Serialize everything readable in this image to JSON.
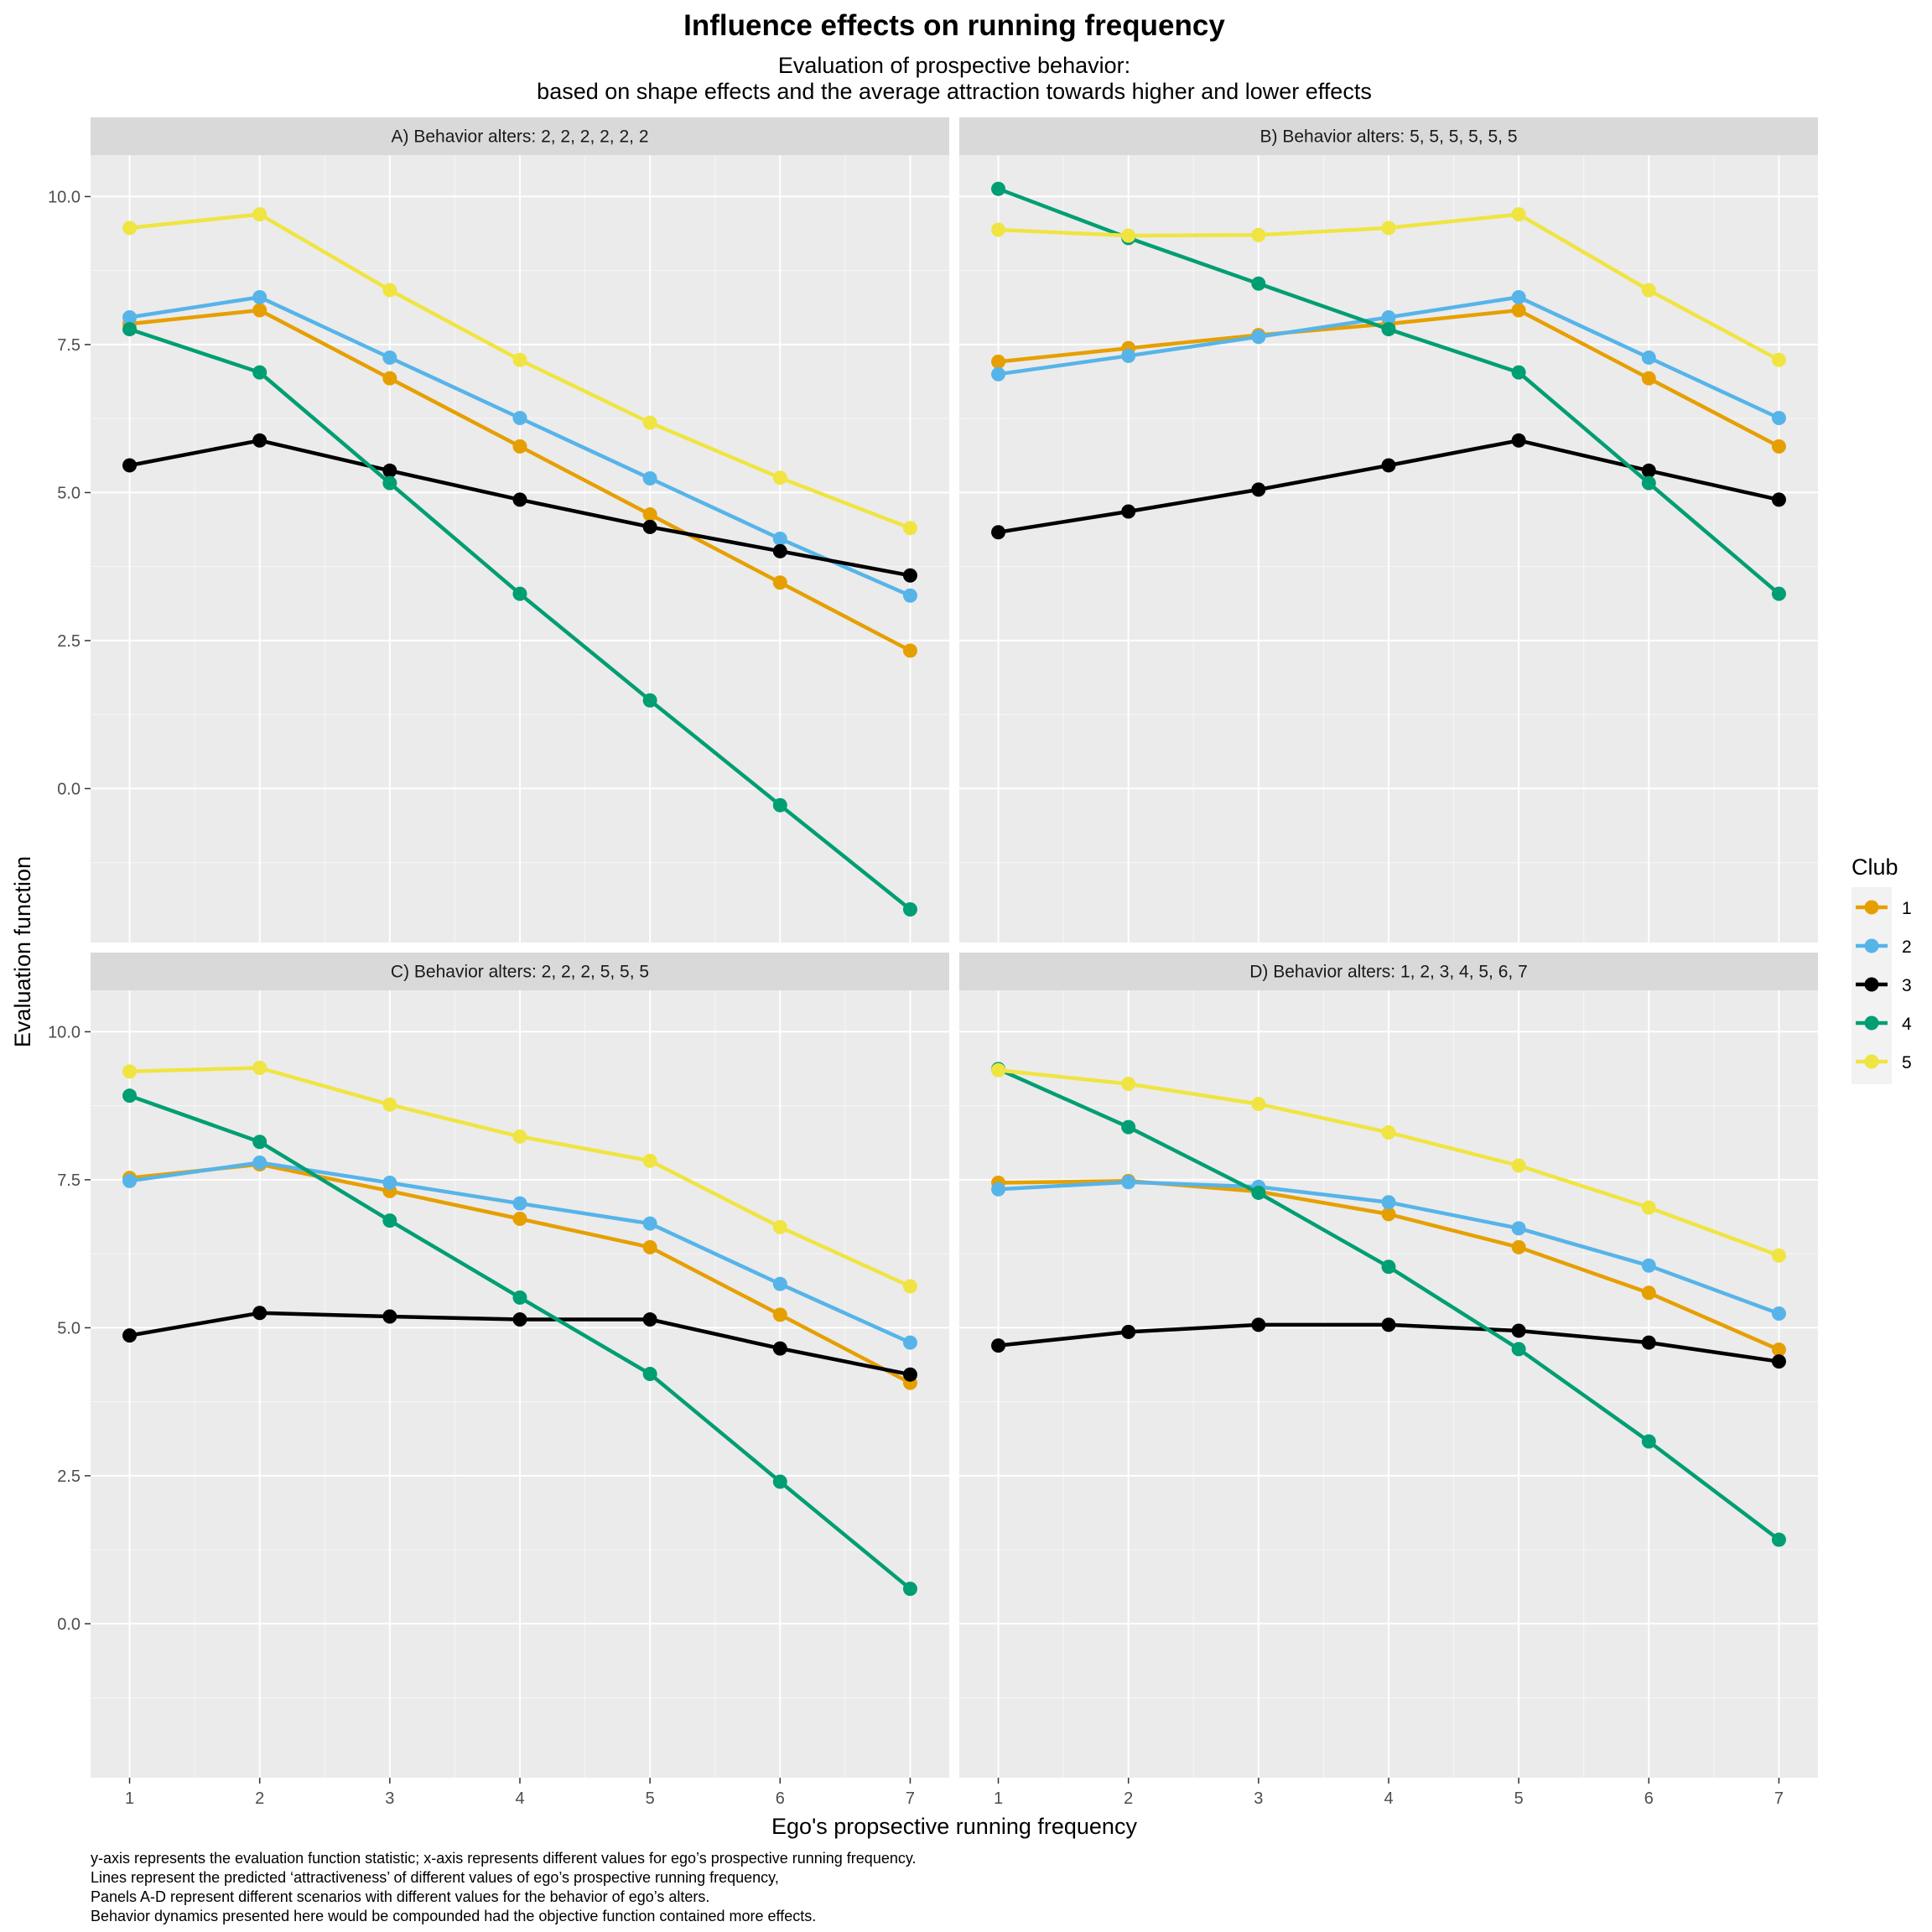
{
  "title": "Influence effects on running frequency",
  "subtitle_lines": [
    "Evaluation of prospective behavior:",
    "based on shape effects and the average attraction towards higher and lower effects"
  ],
  "xlabel": "Ego's propsective running frequency",
  "ylabel": "Evaluation function",
  "legend": {
    "title": "Club",
    "items": [
      {
        "label": "1",
        "color": "#E69F00"
      },
      {
        "label": "2",
        "color": "#56B4E9"
      },
      {
        "label": "3",
        "color": "#000000"
      },
      {
        "label": "4",
        "color": "#009E73"
      },
      {
        "label": "5",
        "color": "#F0E442"
      }
    ]
  },
  "caption_lines": [
    "y-axis represents the evaluation function statistic; x-axis represents different values for ego’s prospective running frequency.",
    "Lines represent the predicted ‘attractiveness’ of different values of ego’s prospective running frequency,",
    "Panels A-D represent different scenarios with different values for the behavior of ego’s alters.",
    " Behavior dynamics presented here would be compounded had the objective function contained more effects."
  ],
  "chart_data": {
    "type": "line",
    "x": [
      1,
      2,
      3,
      4,
      5,
      6,
      7
    ],
    "x_ticks": [
      "1",
      "2",
      "3",
      "4",
      "5",
      "6",
      "7"
    ],
    "y_ticks": [
      "0.0",
      "2.5",
      "5.0",
      "7.5",
      "10.0"
    ],
    "xlim": [
      0.7,
      7.3
    ],
    "ylim": [
      -2.6,
      10.7
    ],
    "grid": true,
    "legend_position": "right",
    "panels": [
      {
        "strip": "A) Behavior alters: 2, 2, 2, 2, 2, 2",
        "series": [
          {
            "name": "1",
            "values": [
              7.85,
              8.08,
              6.93,
              5.78,
              4.63,
              3.48,
              2.33
            ]
          },
          {
            "name": "2",
            "values": [
              7.96,
              8.3,
              7.28,
              6.26,
              5.24,
              4.22,
              3.26
            ]
          },
          {
            "name": "3",
            "values": [
              5.46,
              5.88,
              5.37,
              4.88,
              4.42,
              4.01,
              3.6
            ]
          },
          {
            "name": "4",
            "values": [
              7.76,
              7.03,
              5.16,
              3.29,
              1.49,
              -0.28,
              -2.04
            ]
          },
          {
            "name": "5",
            "values": [
              9.47,
              9.7,
              8.42,
              7.24,
              6.18,
              5.25,
              4.4
            ]
          }
        ]
      },
      {
        "strip": "B) Behavior alters: 5, 5, 5, 5, 5, 5",
        "series": [
          {
            "name": "1",
            "values": [
              7.21,
              7.44,
              7.66,
              7.85,
              8.08,
              6.93,
              5.78
            ]
          },
          {
            "name": "2",
            "values": [
              7.0,
              7.31,
              7.63,
              7.96,
              8.3,
              7.28,
              6.26
            ]
          },
          {
            "name": "3",
            "values": [
              4.33,
              4.68,
              5.05,
              5.46,
              5.88,
              5.37,
              4.88
            ]
          },
          {
            "name": "4",
            "values": [
              10.13,
              9.3,
              8.53,
              7.76,
              7.03,
              5.16,
              3.29
            ]
          },
          {
            "name": "5",
            "values": [
              9.44,
              9.34,
              9.35,
              9.47,
              9.7,
              8.42,
              7.24
            ]
          }
        ]
      },
      {
        "strip": "C) Behavior alters: 2, 2, 2, 5, 5, 5",
        "series": [
          {
            "name": "1",
            "values": [
              7.53,
              7.76,
              7.31,
              6.84,
              6.36,
              5.22,
              4.07
            ]
          },
          {
            "name": "2",
            "values": [
              7.48,
              7.79,
              7.45,
              7.1,
              6.76,
              5.74,
              4.75
            ]
          },
          {
            "name": "3",
            "values": [
              4.87,
              5.25,
              5.19,
              5.14,
              5.14,
              4.65,
              4.21
            ]
          },
          {
            "name": "4",
            "values": [
              8.92,
              8.14,
              6.81,
              5.51,
              4.22,
              2.4,
              0.59
            ]
          },
          {
            "name": "5",
            "values": [
              9.33,
              9.39,
              8.77,
              8.23,
              7.82,
              6.7,
              5.7
            ]
          }
        ]
      },
      {
        "strip": "D) Behavior alters: 1, 2, 3, 4, 5, 6, 7",
        "series": [
          {
            "name": "1",
            "values": [
              7.45,
              7.48,
              7.3,
              6.92,
              6.36,
              5.59,
              4.63
            ]
          },
          {
            "name": "2",
            "values": [
              7.34,
              7.46,
              7.38,
              7.12,
              6.68,
              6.05,
              5.24
            ]
          },
          {
            "name": "3",
            "values": [
              4.7,
              4.93,
              5.05,
              5.05,
              4.95,
              4.75,
              4.43
            ]
          },
          {
            "name": "4",
            "values": [
              9.37,
              8.39,
              7.28,
              6.03,
              4.64,
              3.08,
              1.42
            ]
          },
          {
            "name": "5",
            "values": [
              9.35,
              9.12,
              8.78,
              8.3,
              7.74,
              7.03,
              6.22
            ]
          }
        ]
      }
    ]
  }
}
